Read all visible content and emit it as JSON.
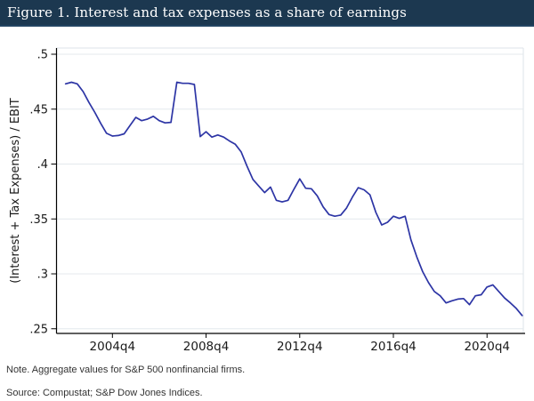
{
  "header": {
    "title": "Figure 1. Interest and tax expenses as a share of earnings"
  },
  "notes": {
    "note": "Note. Aggregate values for S&P 500 nonfinancial firms.",
    "source": "Source: Compustat; S&P Dow Jones Indices."
  },
  "palette": {
    "header_bg": "#1c3850",
    "header_text": "#ffffff",
    "line": "#2d35a5",
    "grid": "#e4e9ed",
    "plot_border": "#dde3e8",
    "axis": "#000000",
    "tick_text": "#1a1a1a",
    "note_text": "#333333"
  },
  "chart_data": {
    "type": "line",
    "title": "Figure 1. Interest and tax expenses as a share of earnings",
    "xlabel": "",
    "ylabel": "(Interest + Tax Expenses) / EBIT",
    "legend": "none",
    "grid": "horizontal",
    "ylim": [
      0.246,
      0.506
    ],
    "yticks": [
      {
        "label": ".25",
        "value": 0.25
      },
      {
        "label": ".3",
        "value": 0.3
      },
      {
        "label": ".35",
        "value": 0.35
      },
      {
        "label": ".4",
        "value": 0.4
      },
      {
        "label": ".45",
        "value": 0.45
      },
      {
        "label": ".5",
        "value": 0.5
      }
    ],
    "xticks": [
      "2004q4",
      "2008q4",
      "2012q4",
      "2016q4",
      "2020q4"
    ],
    "x": [
      "2002q4",
      "2003q1",
      "2003q2",
      "2003q3",
      "2003q4",
      "2004q1",
      "2004q2",
      "2004q3",
      "2004q4",
      "2005q1",
      "2005q2",
      "2005q3",
      "2005q4",
      "2006q1",
      "2006q2",
      "2006q3",
      "2006q4",
      "2007q1",
      "2007q2",
      "2007q3",
      "2007q4",
      "2008q1",
      "2008q2",
      "2008q3",
      "2008q4",
      "2009q1",
      "2009q2",
      "2009q3",
      "2009q4",
      "2010q1",
      "2010q2",
      "2010q3",
      "2010q4",
      "2011q1",
      "2011q2",
      "2011q3",
      "2011q4",
      "2012q1",
      "2012q2",
      "2012q3",
      "2012q4",
      "2013q1",
      "2013q2",
      "2013q3",
      "2013q4",
      "2014q1",
      "2014q2",
      "2014q3",
      "2014q4",
      "2015q1",
      "2015q2",
      "2015q3",
      "2015q4",
      "2016q1",
      "2016q2",
      "2016q3",
      "2016q4",
      "2017q1",
      "2017q2",
      "2017q3",
      "2017q4",
      "2018q1",
      "2018q2",
      "2018q3",
      "2018q4",
      "2019q1",
      "2019q2",
      "2019q3",
      "2019q4",
      "2020q1",
      "2020q2",
      "2020q3",
      "2020q4",
      "2021q1",
      "2021q2",
      "2021q3",
      "2021q4",
      "2022q1",
      "2022q2"
    ],
    "values": [
      0.473,
      0.4745,
      0.473,
      0.466,
      0.456,
      0.447,
      0.437,
      0.428,
      0.4255,
      0.426,
      0.4275,
      0.435,
      0.4425,
      0.4395,
      0.441,
      0.4435,
      0.4395,
      0.4375,
      0.438,
      0.4745,
      0.4735,
      0.4735,
      0.4725,
      0.425,
      0.4295,
      0.4245,
      0.4265,
      0.4245,
      0.421,
      0.418,
      0.411,
      0.398,
      0.386,
      0.38,
      0.374,
      0.379,
      0.367,
      0.3655,
      0.367,
      0.377,
      0.3865,
      0.378,
      0.3775,
      0.371,
      0.361,
      0.354,
      0.3525,
      0.3535,
      0.36,
      0.37,
      0.3785,
      0.3765,
      0.372,
      0.356,
      0.3445,
      0.347,
      0.3525,
      0.3505,
      0.3525,
      0.331,
      0.3155,
      0.302,
      0.292,
      0.284,
      0.28,
      0.2735,
      0.2755,
      0.277,
      0.2775,
      0.272,
      0.28,
      0.281,
      0.288,
      0.29,
      0.284,
      0.278,
      0.2735,
      0.2685,
      0.262
    ]
  }
}
